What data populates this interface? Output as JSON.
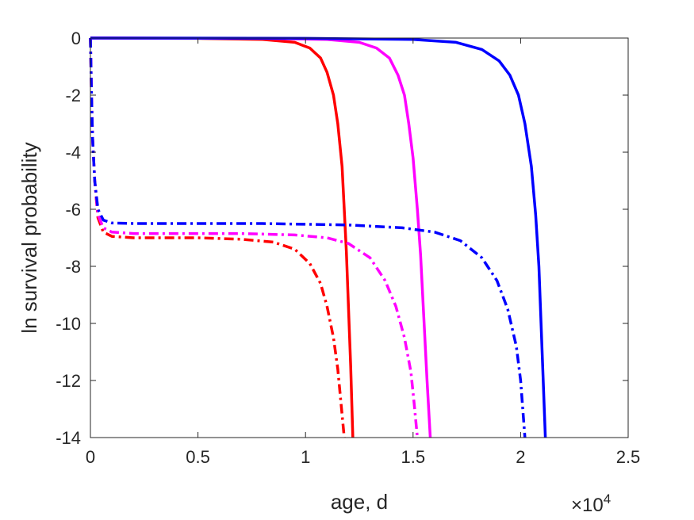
{
  "chart_data": {
    "type": "line",
    "title": "",
    "xlabel": "age, d",
    "ylabel": "ln survival probability",
    "x_exponent_label": {
      "base": "×10",
      "exp": "4"
    },
    "xlim": [
      0,
      25000
    ],
    "ylim": [
      -14,
      0
    ],
    "x_ticks": [
      0,
      5000,
      10000,
      15000,
      20000,
      25000
    ],
    "x_tick_labels": [
      "0",
      "0.5",
      "1",
      "1.5",
      "2",
      "2.5"
    ],
    "y_ticks": [
      0,
      -2,
      -4,
      -6,
      -8,
      -10,
      -12,
      -14
    ],
    "y_tick_labels": [
      "0",
      "-2",
      "-4",
      "-6",
      "-8",
      "-10",
      "-12",
      "-14"
    ],
    "grid": false,
    "series": [
      {
        "color": "#ff0000",
        "style": "solid",
        "points": [
          [
            0,
            0
          ],
          [
            5000,
            -0.01
          ],
          [
            8000,
            -0.05
          ],
          [
            9500,
            -0.15
          ],
          [
            10200,
            -0.35
          ],
          [
            10700,
            -0.7
          ],
          [
            11000,
            -1.2
          ],
          [
            11300,
            -2
          ],
          [
            11500,
            -3
          ],
          [
            11700,
            -4.5
          ],
          [
            11800,
            -6
          ],
          [
            11900,
            -7.5
          ],
          [
            12000,
            -9.5
          ],
          [
            12100,
            -11.5
          ],
          [
            12200,
            -14
          ]
        ]
      },
      {
        "color": "#ff00ff",
        "style": "solid",
        "points": [
          [
            0,
            0
          ],
          [
            8000,
            -0.01
          ],
          [
            11000,
            -0.05
          ],
          [
            12500,
            -0.15
          ],
          [
            13300,
            -0.35
          ],
          [
            13900,
            -0.7
          ],
          [
            14300,
            -1.3
          ],
          [
            14600,
            -2
          ],
          [
            14800,
            -3
          ],
          [
            15000,
            -4.2
          ],
          [
            15200,
            -6
          ],
          [
            15350,
            -7.6
          ],
          [
            15500,
            -9.8
          ],
          [
            15650,
            -12
          ],
          [
            15800,
            -14
          ]
        ]
      },
      {
        "color": "#0000ff",
        "style": "solid",
        "points": [
          [
            0,
            0
          ],
          [
            10000,
            -0.01
          ],
          [
            15000,
            -0.05
          ],
          [
            17000,
            -0.15
          ],
          [
            18200,
            -0.4
          ],
          [
            19000,
            -0.8
          ],
          [
            19500,
            -1.3
          ],
          [
            19900,
            -2
          ],
          [
            20200,
            -3
          ],
          [
            20500,
            -4.5
          ],
          [
            20700,
            -6.2
          ],
          [
            20850,
            -8
          ],
          [
            20950,
            -10
          ],
          [
            21050,
            -12
          ],
          [
            21150,
            -14
          ]
        ]
      },
      {
        "color": "#ff0000",
        "style": "dashdot",
        "points": [
          [
            0,
            0
          ],
          [
            50,
            -2
          ],
          [
            100,
            -3.5
          ],
          [
            200,
            -5
          ],
          [
            350,
            -6.3
          ],
          [
            600,
            -6.8
          ],
          [
            1000,
            -6.95
          ],
          [
            2000,
            -7
          ],
          [
            5000,
            -7
          ],
          [
            7000,
            -7.05
          ],
          [
            8500,
            -7.15
          ],
          [
            9500,
            -7.4
          ],
          [
            10200,
            -7.9
          ],
          [
            10700,
            -8.6
          ],
          [
            11000,
            -9.4
          ],
          [
            11300,
            -10.5
          ],
          [
            11500,
            -11.6
          ],
          [
            11650,
            -12.8
          ],
          [
            11800,
            -14
          ]
        ]
      },
      {
        "color": "#ff00ff",
        "style": "dashdot",
        "points": [
          [
            0,
            0
          ],
          [
            50,
            -2
          ],
          [
            100,
            -3.5
          ],
          [
            200,
            -5
          ],
          [
            350,
            -6.2
          ],
          [
            600,
            -6.65
          ],
          [
            1000,
            -6.8
          ],
          [
            2000,
            -6.85
          ],
          [
            7000,
            -6.85
          ],
          [
            9500,
            -6.9
          ],
          [
            11000,
            -7
          ],
          [
            12000,
            -7.2
          ],
          [
            13000,
            -7.7
          ],
          [
            13700,
            -8.5
          ],
          [
            14200,
            -9.4
          ],
          [
            14600,
            -10.5
          ],
          [
            14900,
            -11.7
          ],
          [
            15050,
            -12.8
          ],
          [
            15200,
            -14
          ]
        ]
      },
      {
        "color": "#0000ff",
        "style": "dashdot",
        "points": [
          [
            0,
            0
          ],
          [
            50,
            -2
          ],
          [
            100,
            -3.5
          ],
          [
            200,
            -5
          ],
          [
            350,
            -6
          ],
          [
            600,
            -6.38
          ],
          [
            1000,
            -6.48
          ],
          [
            2000,
            -6.5
          ],
          [
            8000,
            -6.5
          ],
          [
            12000,
            -6.55
          ],
          [
            14500,
            -6.65
          ],
          [
            16000,
            -6.8
          ],
          [
            17200,
            -7.1
          ],
          [
            18200,
            -7.7
          ],
          [
            18900,
            -8.5
          ],
          [
            19400,
            -9.5
          ],
          [
            19800,
            -10.8
          ],
          [
            20000,
            -12
          ],
          [
            20200,
            -14
          ]
        ]
      }
    ]
  }
}
